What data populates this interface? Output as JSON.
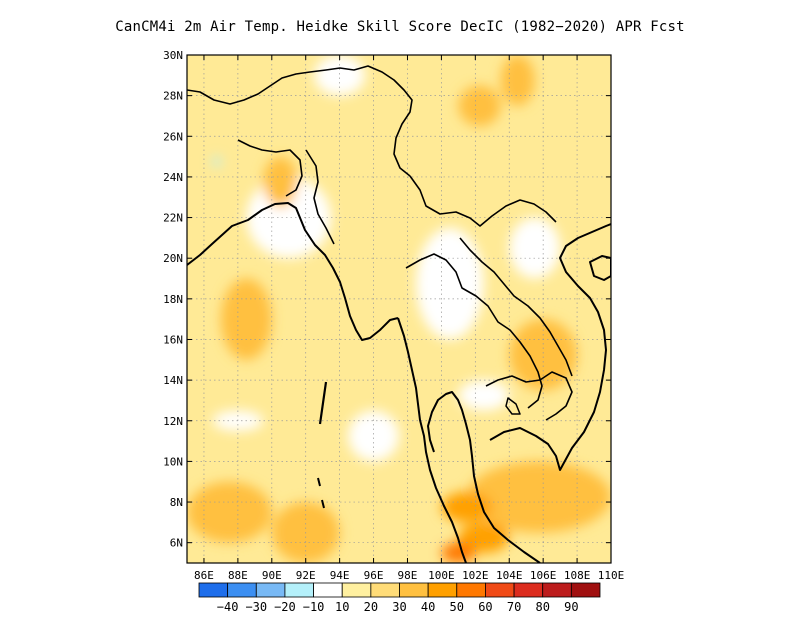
{
  "title": "CanCM4i  2m Air Temp. Heidke Skill Score DecIC (1982−2020) APR Fcst",
  "map": {
    "lon_range": [
      85,
      110
    ],
    "lat_range": [
      5,
      30
    ],
    "grid": "dotted",
    "x_ticks": [
      "86E",
      "88E",
      "90E",
      "92E",
      "94E",
      "96E",
      "98E",
      "100E",
      "102E",
      "104E",
      "106E",
      "108E",
      "110E"
    ],
    "y_ticks": [
      "6N",
      "8N",
      "10N",
      "12N",
      "14N",
      "16N",
      "18N",
      "20N",
      "22N",
      "24N",
      "26N",
      "28N",
      "30N"
    ],
    "background_color": "#ffea96"
  },
  "colorbar": {
    "colors": [
      "#1e6eeb",
      "#3c8ff2",
      "#78b9f5",
      "#b4f0fa",
      "#ffffff",
      "#fff0a0",
      "#ffdc78",
      "#ffc040",
      "#ffa000",
      "#ff7800",
      "#f04a16",
      "#dc2c1e",
      "#bc1c1c",
      "#a01010"
    ],
    "labels": [
      "−40",
      "−30",
      "−20",
      "−10",
      "10",
      "20",
      "30",
      "40",
      "50",
      "60",
      "70",
      "80",
      "90"
    ]
  },
  "chart_data": {
    "type": "heatmap",
    "title": "CanCM4i  2m Air Temp. Heidke Skill Score DecIC (1982−2020) APR Fcst",
    "xlim": [
      85,
      110
    ],
    "ylim": [
      5,
      30
    ],
    "levels": [
      -40,
      -30,
      -20,
      -10,
      10,
      20,
      30,
      40,
      50,
      60,
      70,
      80,
      90
    ],
    "regions": [
      {
        "value": 5,
        "lon": [
          88.5,
          93.5
        ],
        "lat": [
          20,
          24
        ]
      },
      {
        "value": 5,
        "lon": [
          98.5,
          102.5
        ],
        "lat": [
          16,
          21.5
        ]
      },
      {
        "value": 5,
        "lon": [
          94.5,
          97.5
        ],
        "lat": [
          10,
          12.5
        ]
      },
      {
        "value": 5,
        "lon": [
          86.5,
          89.5
        ],
        "lat": [
          11.5,
          12.5
        ]
      },
      {
        "value": 5,
        "lon": [
          92.5,
          95.5
        ],
        "lat": [
          28,
          30
        ]
      },
      {
        "value": 5,
        "lon": [
          104,
          107
        ],
        "lat": [
          19,
          22
        ]
      },
      {
        "value": 5,
        "lon": [
          101,
          104
        ],
        "lat": [
          12.5,
          14
        ]
      },
      {
        "value": -15,
        "lon": [
          86.5,
          87
        ],
        "lat": [
          24.5,
          25
        ]
      },
      {
        "value": 35,
        "lon": [
          85,
          90
        ],
        "lat": [
          6,
          9
        ]
      },
      {
        "value": 35,
        "lon": [
          90,
          94
        ],
        "lat": [
          5,
          8
        ]
      },
      {
        "value": 35,
        "lon": [
          101.5,
          110
        ],
        "lat": [
          6.5,
          10
        ]
      },
      {
        "value": 35,
        "lon": [
          89.5,
          91.5
        ],
        "lat": [
          22.5,
          25
        ]
      },
      {
        "value": 35,
        "lon": [
          87,
          90
        ],
        "lat": [
          15,
          19
        ]
      },
      {
        "value": 35,
        "lon": [
          101,
          103.5
        ],
        "lat": [
          26.5,
          28.5
        ]
      },
      {
        "value": 35,
        "lon": [
          103.5,
          105.5
        ],
        "lat": [
          27.5,
          30
        ]
      },
      {
        "value": 35,
        "lon": [
          104,
          108
        ],
        "lat": [
          13.5,
          17
        ]
      },
      {
        "value": 45,
        "lon": [
          100,
          103
        ],
        "lat": [
          7,
          8.5
        ]
      },
      {
        "value": 45,
        "lon": [
          101,
          104
        ],
        "lat": [
          5.5,
          7
        ]
      },
      {
        "value": 55,
        "lon": [
          100,
          102
        ],
        "lat": [
          5,
          6
        ]
      }
    ]
  }
}
